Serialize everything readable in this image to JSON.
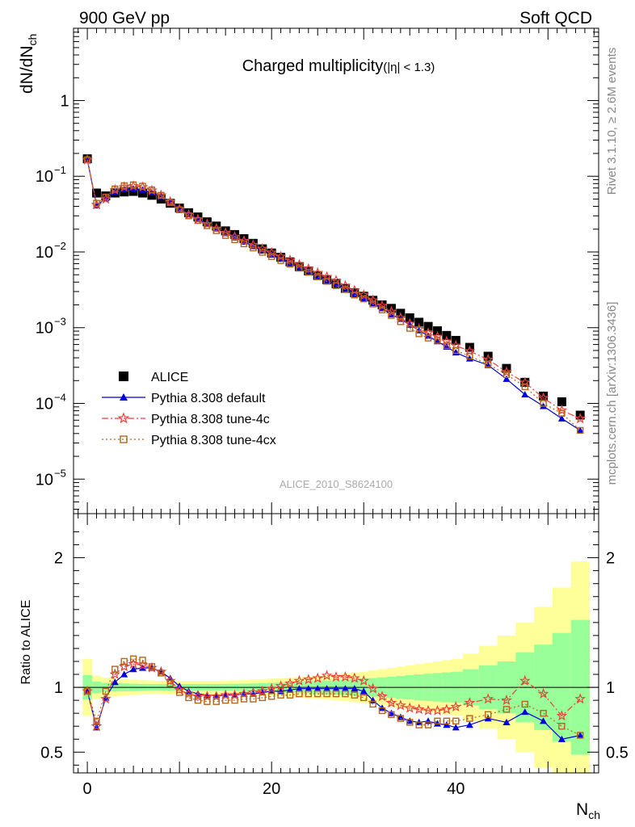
{
  "header": {
    "left": "900 GeV pp",
    "right": "Soft QCD"
  },
  "side_text": {
    "rivet": "Rivet 3.1.10, ≥ 2.6M events",
    "mcplots": "mcplots.cern.ch [arXiv:1306.3436]"
  },
  "watermark": "ALICE_2010_S8624100",
  "chart_data": [
    {
      "type": "scatter",
      "panel": "main",
      "title": "Charged multiplicity",
      "title_suffix": "(|η| < 1.3)",
      "ylabel": "dN/dN",
      "ylabel_sub": "ch",
      "yscale": "log",
      "ylim": [
        3.5e-06,
        9
      ],
      "xlim": [
        -1.5,
        55.5
      ],
      "ytick_labels": [
        {
          "base": "10",
          "exp": "−5",
          "value": 1e-05
        },
        {
          "base": "10",
          "exp": "−4",
          "value": 0.0001
        },
        {
          "base": "10",
          "exp": "−3",
          "value": 0.001
        },
        {
          "base": "10",
          "exp": "−2",
          "value": 0.01
        },
        {
          "base": "10",
          "exp": "−1",
          "value": 0.1
        },
        {
          "base": "1",
          "exp": "",
          "value": 1
        }
      ],
      "legend_placement": "bottom-left",
      "series": [
        {
          "name": "ALICE",
          "color": "#000000",
          "marker": "square",
          "x": [
            0,
            1,
            2,
            3,
            4,
            5,
            6,
            7,
            8,
            9,
            10,
            11,
            12,
            13,
            14,
            15,
            16,
            17,
            18,
            19,
            20,
            21,
            22,
            23,
            24,
            25,
            26,
            27,
            28,
            29,
            30,
            31,
            32,
            33,
            34,
            35,
            36,
            37,
            38,
            39,
            40,
            41.5,
            43.5,
            45.5,
            47.5,
            49.5,
            51.5,
            53.5
          ],
          "y": [
            0.17,
            0.06,
            0.055,
            0.06,
            0.062,
            0.063,
            0.06,
            0.056,
            0.05,
            0.044,
            0.038,
            0.033,
            0.029,
            0.025,
            0.022,
            0.019,
            0.017,
            0.015,
            0.013,
            0.011,
            0.0097,
            0.0085,
            0.0074,
            0.0064,
            0.0056,
            0.0049,
            0.0043,
            0.0038,
            0.0033,
            0.0029,
            0.0026,
            0.0023,
            0.002,
            0.0018,
            0.00155,
            0.00135,
            0.00118,
            0.00104,
            0.00091,
            0.00079,
            0.00068,
            0.00055,
            0.00042,
            0.00029,
            0.00019,
            0.000125,
            0.000105,
            7e-05
          ]
        },
        {
          "name": "Pythia 8.308 default",
          "color": "#0000dd",
          "marker": "triangle",
          "line": "solid",
          "x": [
            0,
            1,
            2,
            3,
            4,
            5,
            6,
            7,
            8,
            9,
            10,
            11,
            12,
            13,
            14,
            15,
            16,
            17,
            18,
            19,
            20,
            21,
            22,
            23,
            24,
            25,
            26,
            27,
            28,
            29,
            30,
            31,
            32,
            33,
            34,
            35,
            36,
            37,
            38,
            39,
            40,
            41.5,
            43.5,
            45.5,
            47.5,
            49.5,
            51.5,
            53.5
          ],
          "y": [
            0.165,
            0.041,
            0.051,
            0.062,
            0.067,
            0.068,
            0.066,
            0.061,
            0.054,
            0.046,
            0.038,
            0.0315,
            0.0272,
            0.0234,
            0.0203,
            0.0177,
            0.0155,
            0.0136,
            0.0119,
            0.0104,
            0.0092,
            0.0081,
            0.0072,
            0.0063,
            0.0055,
            0.0048,
            0.0042,
            0.0037,
            0.0033,
            0.0028,
            0.0024,
            0.0021,
            0.0018,
            0.0015,
            0.0013,
            0.00109,
            0.00092,
            0.00078,
            0.00066,
            0.00056,
            0.00047,
            0.00039,
            0.00032,
            0.00021,
            0.000131,
            9.2e-05,
            6.3e-05,
            4.4e-05
          ]
        },
        {
          "name": "Pythia 8.308 tune-4c",
          "color": "#e8423c",
          "marker": "star",
          "line": "dashdot",
          "x": [
            0,
            1,
            2,
            3,
            4,
            5,
            6,
            7,
            8,
            9,
            10,
            11,
            12,
            13,
            14,
            15,
            16,
            17,
            18,
            19,
            20,
            21,
            22,
            23,
            24,
            25,
            26,
            27,
            28,
            29,
            30,
            31,
            32,
            33,
            34,
            35,
            36,
            37,
            38,
            39,
            40,
            41.5,
            43.5,
            45.5,
            47.5,
            49.5,
            51.5,
            53.5
          ],
          "y": [
            0.165,
            0.042,
            0.05,
            0.066,
            0.072,
            0.074,
            0.072,
            0.065,
            0.056,
            0.046,
            0.037,
            0.031,
            0.027,
            0.0233,
            0.0204,
            0.0179,
            0.0159,
            0.014,
            0.0124,
            0.011,
            0.0098,
            0.0087,
            0.0078,
            0.0068,
            0.006,
            0.0053,
            0.0047,
            0.0042,
            0.0036,
            0.0031,
            0.0027,
            0.0023,
            0.00195,
            0.00163,
            0.00135,
            0.00113,
            0.00096,
            0.00085,
            0.00076,
            0.00066,
            0.00058,
            0.00049,
            0.00038,
            0.00026,
            0.000189,
            0.000118,
            8.1e-05,
            6.3e-05
          ]
        },
        {
          "name": "Pythia 8.308 tune-4cx",
          "color": "#b5651d",
          "marker": "opensquare",
          "line": "dotted",
          "x": [
            0,
            1,
            2,
            3,
            4,
            5,
            6,
            7,
            8,
            9,
            10,
            11,
            12,
            13,
            14,
            15,
            16,
            17,
            18,
            19,
            20,
            21,
            22,
            23,
            24,
            25,
            26,
            27,
            28,
            29,
            30,
            31,
            32,
            33,
            34,
            35,
            36,
            37,
            38,
            39,
            40,
            41.5,
            43.5,
            45.5,
            47.5,
            49.5,
            51.5,
            53.5
          ],
          "y": [
            0.165,
            0.044,
            0.053,
            0.068,
            0.075,
            0.077,
            0.074,
            0.066,
            0.056,
            0.045,
            0.036,
            0.03,
            0.026,
            0.0222,
            0.0191,
            0.0165,
            0.0145,
            0.0128,
            0.0113,
            0.0099,
            0.0087,
            0.0077,
            0.0069,
            0.0061,
            0.0054,
            0.0047,
            0.0041,
            0.0036,
            0.0032,
            0.0027,
            0.0024,
            0.00205,
            0.00172,
            0.00145,
            0.0012,
            0.00098,
            0.00083,
            0.00073,
            0.00068,
            0.00058,
            0.0005,
            0.00042,
            0.00033,
            0.00024,
            0.000166,
            0.0001,
            7.4e-05,
            4.4e-05
          ]
        }
      ]
    },
    {
      "type": "scatter",
      "panel": "ratio",
      "ylabel": "Ratio to ALICE",
      "xlabel": "N",
      "xlabel_sub": "ch",
      "ylim": [
        0.34,
        2.34
      ],
      "xlim": [
        -1.5,
        55.5
      ],
      "xticks": [
        0,
        20,
        40
      ],
      "yticks": [
        0.5,
        1,
        2
      ],
      "reference_line": 1,
      "bands": {
        "x": [
          0,
          1,
          2,
          3,
          4,
          5,
          6,
          7,
          8,
          9,
          10,
          11,
          12,
          13,
          14,
          15,
          16,
          17,
          18,
          19,
          20,
          21,
          22,
          23,
          24,
          25,
          26,
          27,
          28,
          29,
          30,
          31,
          32,
          33,
          34,
          35,
          36,
          37,
          38,
          39,
          40,
          41.5,
          43.5,
          45.5,
          47.5,
          49.5,
          51.5,
          53.5
        ],
        "green_halfwidth": [
          0.095,
          0.045,
          0.035,
          0.032,
          0.03,
          0.028,
          0.026,
          0.025,
          0.025,
          0.025,
          0.025,
          0.025,
          0.025,
          0.025,
          0.025,
          0.026,
          0.027,
          0.028,
          0.03,
          0.032,
          0.035,
          0.037,
          0.04,
          0.043,
          0.047,
          0.05,
          0.053,
          0.056,
          0.06,
          0.064,
          0.068,
          0.072,
          0.077,
          0.082,
          0.088,
          0.094,
          0.1,
          0.105,
          0.11,
          0.115,
          0.12,
          0.14,
          0.17,
          0.2,
          0.27,
          0.33,
          0.42,
          0.52
        ],
        "yellow_halfwidth": [
          0.22,
          0.09,
          0.075,
          0.07,
          0.065,
          0.06,
          0.055,
          0.052,
          0.05,
          0.05,
          0.05,
          0.05,
          0.05,
          0.05,
          0.05,
          0.052,
          0.054,
          0.056,
          0.06,
          0.063,
          0.067,
          0.07,
          0.075,
          0.08,
          0.085,
          0.09,
          0.095,
          0.1,
          0.107,
          0.114,
          0.12,
          0.13,
          0.14,
          0.15,
          0.16,
          0.17,
          0.18,
          0.19,
          0.2,
          0.21,
          0.22,
          0.26,
          0.32,
          0.4,
          0.5,
          0.62,
          0.77,
          0.97
        ]
      },
      "series": [
        {
          "name": "Pythia 8.308 default",
          "color": "#0000dd",
          "marker": "triangle",
          "line": "solid",
          "x": [
            0,
            1,
            2,
            3,
            4,
            5,
            6,
            7,
            8,
            9,
            10,
            11,
            12,
            13,
            14,
            15,
            16,
            17,
            18,
            19,
            20,
            21,
            22,
            23,
            24,
            25,
            26,
            27,
            28,
            29,
            30,
            31,
            32,
            33,
            34,
            35,
            36,
            37,
            38,
            39,
            40,
            41.5,
            43.5,
            45.5,
            47.5,
            49.5,
            51.5,
            53.5
          ],
          "y": [
            0.97,
            0.69,
            0.92,
            1.04,
            1.1,
            1.14,
            1.15,
            1.15,
            1.12,
            1.07,
            1.01,
            0.97,
            0.95,
            0.94,
            0.94,
            0.94,
            0.94,
            0.95,
            0.95,
            0.96,
            0.97,
            0.97,
            0.98,
            0.99,
            0.99,
            0.99,
            0.99,
            0.99,
            0.99,
            0.99,
            0.97,
            0.9,
            0.84,
            0.8,
            0.77,
            0.74,
            0.73,
            0.74,
            0.72,
            0.71,
            0.69,
            0.71,
            0.76,
            0.73,
            0.81,
            0.74,
            0.6,
            0.63
          ]
        },
        {
          "name": "Pythia 8.308 tune-4c",
          "color": "#e8423c",
          "marker": "star",
          "line": "dashdot",
          "x": [
            0,
            1,
            2,
            3,
            4,
            5,
            6,
            7,
            8,
            9,
            10,
            11,
            12,
            13,
            14,
            15,
            16,
            17,
            18,
            19,
            20,
            21,
            22,
            23,
            24,
            25,
            26,
            27,
            28,
            29,
            30,
            31,
            32,
            33,
            34,
            35,
            36,
            37,
            38,
            39,
            40,
            41.5,
            43.5,
            45.5,
            47.5,
            49.5,
            51.5,
            53.5
          ],
          "y": [
            0.97,
            0.7,
            0.91,
            1.1,
            1.16,
            1.18,
            1.17,
            1.15,
            1.12,
            1.05,
            0.98,
            0.95,
            0.93,
            0.93,
            0.93,
            0.94,
            0.94,
            0.95,
            0.96,
            0.97,
            0.99,
            1.01,
            1.03,
            1.05,
            1.06,
            1.07,
            1.09,
            1.08,
            1.08,
            1.07,
            1.05,
            0.99,
            0.93,
            0.88,
            0.86,
            0.84,
            0.83,
            0.82,
            0.82,
            0.83,
            0.85,
            0.88,
            0.91,
            0.9,
            1.05,
            0.95,
            0.78,
            0.91
          ]
        },
        {
          "name": "Pythia 8.308 tune-4cx",
          "color": "#b5651d",
          "marker": "opensquare",
          "line": "dotted",
          "x": [
            0,
            1,
            2,
            3,
            4,
            5,
            6,
            7,
            8,
            9,
            10,
            11,
            12,
            13,
            14,
            15,
            16,
            17,
            18,
            19,
            20,
            21,
            22,
            23,
            24,
            25,
            26,
            27,
            28,
            29,
            30,
            31,
            32,
            33,
            34,
            35,
            36,
            37,
            38,
            39,
            40,
            41.5,
            43.5,
            45.5,
            47.5,
            49.5,
            51.5,
            53.5
          ],
          "y": [
            0.97,
            0.74,
            0.97,
            1.14,
            1.2,
            1.22,
            1.21,
            1.16,
            1.11,
            1.03,
            0.96,
            0.92,
            0.9,
            0.89,
            0.89,
            0.9,
            0.9,
            0.91,
            0.91,
            0.92,
            0.93,
            0.94,
            0.94,
            0.95,
            0.95,
            0.95,
            0.95,
            0.95,
            0.95,
            0.94,
            0.92,
            0.87,
            0.82,
            0.79,
            0.76,
            0.73,
            0.71,
            0.71,
            0.74,
            0.74,
            0.74,
            0.76,
            0.79,
            0.83,
            0.87,
            0.8,
            0.7,
            0.63
          ]
        }
      ]
    }
  ]
}
